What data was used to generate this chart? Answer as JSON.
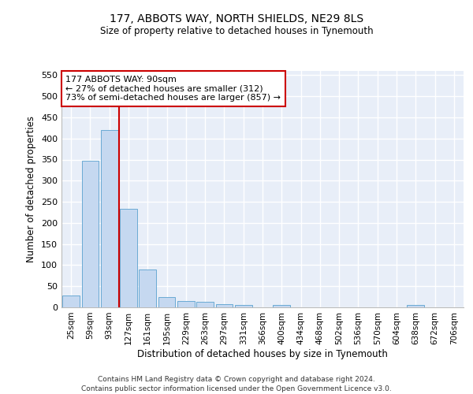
{
  "title1": "177, ABBOTS WAY, NORTH SHIELDS, NE29 8LS",
  "title2": "Size of property relative to detached houses in Tynemouth",
  "xlabel": "Distribution of detached houses by size in Tynemouth",
  "ylabel": "Number of detached properties",
  "categories": [
    "25sqm",
    "59sqm",
    "93sqm",
    "127sqm",
    "161sqm",
    "195sqm",
    "229sqm",
    "263sqm",
    "297sqm",
    "331sqm",
    "366sqm",
    "400sqm",
    "434sqm",
    "468sqm",
    "502sqm",
    "536sqm",
    "570sqm",
    "604sqm",
    "638sqm",
    "672sqm",
    "706sqm"
  ],
  "values": [
    28,
    348,
    420,
    234,
    90,
    24,
    15,
    13,
    7,
    6,
    0,
    5,
    0,
    0,
    0,
    0,
    0,
    0,
    5,
    0,
    0
  ],
  "bar_color": "#c5d8f0",
  "bar_edge_color": "#6aaad4",
  "vline_x_idx": 2,
  "vline_color": "#cc0000",
  "annotation_text": "177 ABBOTS WAY: 90sqm\n← 27% of detached houses are smaller (312)\n73% of semi-detached houses are larger (857) →",
  "annotation_box_color": "#ffffff",
  "annotation_border_color": "#cc0000",
  "ylim": [
    0,
    560
  ],
  "yticks": [
    0,
    50,
    100,
    150,
    200,
    250,
    300,
    350,
    400,
    450,
    500,
    550
  ],
  "bg_color": "#e8eef8",
  "grid_color": "#ffffff",
  "footer1": "Contains HM Land Registry data © Crown copyright and database right 2024.",
  "footer2": "Contains public sector information licensed under the Open Government Licence v3.0."
}
